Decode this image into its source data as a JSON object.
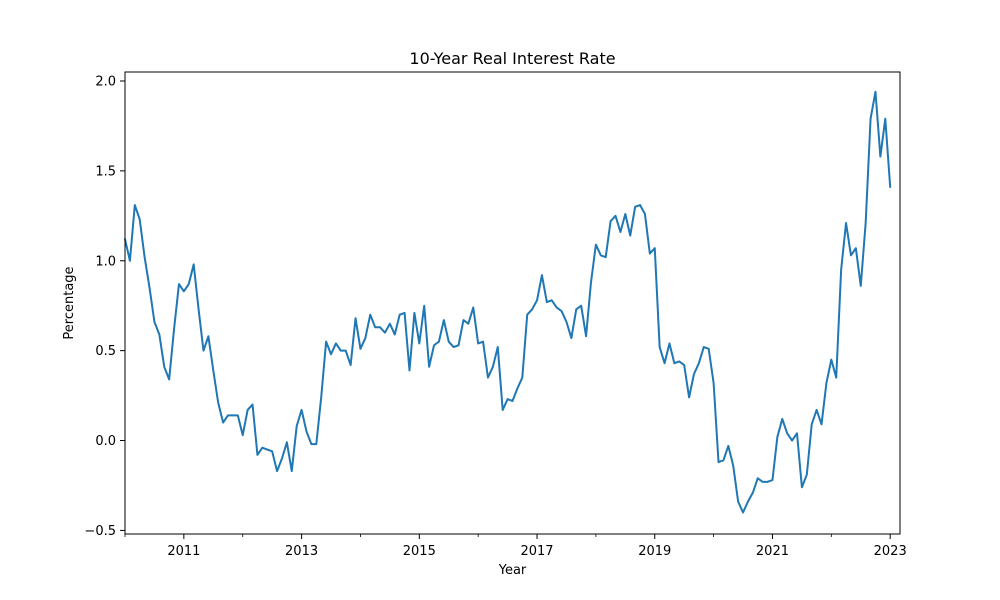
{
  "chart_data": {
    "type": "line",
    "title": "10-Year Real Interest Rate",
    "xlabel": "Year",
    "ylabel": "Percentage",
    "xlim": [
      "2010-01",
      "2023-03"
    ],
    "ylim": [
      -0.52,
      2.05
    ],
    "grid": false,
    "legend": "none",
    "x_ticks": [
      "2011",
      "2013",
      "2015",
      "2017",
      "2019",
      "2021",
      "2023"
    ],
    "y_ticks": [
      "−0.5",
      "0.0",
      "0.5",
      "1.0",
      "1.5",
      "2.0"
    ],
    "series": [
      {
        "color": "#1f77b4",
        "points": [
          [
            "2010-01",
            1.12
          ],
          [
            "2010-02",
            1.0
          ],
          [
            "2010-03",
            1.31
          ],
          [
            "2010-04",
            1.23
          ],
          [
            "2010-05",
            1.02
          ],
          [
            "2010-06",
            0.85
          ],
          [
            "2010-07",
            0.66
          ],
          [
            "2010-08",
            0.59
          ],
          [
            "2010-09",
            0.41
          ],
          [
            "2010-10",
            0.34
          ],
          [
            "2010-11",
            0.62
          ],
          [
            "2010-12",
            0.87
          ],
          [
            "2011-01",
            0.83
          ],
          [
            "2011-02",
            0.87
          ],
          [
            "2011-03",
            0.98
          ],
          [
            "2011-04",
            0.73
          ],
          [
            "2011-05",
            0.5
          ],
          [
            "2011-06",
            0.58
          ],
          [
            "2011-07",
            0.39
          ],
          [
            "2011-08",
            0.21
          ],
          [
            "2011-09",
            0.1
          ],
          [
            "2011-10",
            0.14
          ],
          [
            "2011-11",
            0.14
          ],
          [
            "2011-12",
            0.14
          ],
          [
            "2012-01",
            0.03
          ],
          [
            "2012-02",
            0.17
          ],
          [
            "2012-03",
            0.2
          ],
          [
            "2012-04",
            -0.08
          ],
          [
            "2012-05",
            -0.04
          ],
          [
            "2012-06",
            -0.05
          ],
          [
            "2012-07",
            -0.06
          ],
          [
            "2012-08",
            -0.17
          ],
          [
            "2012-09",
            -0.1
          ],
          [
            "2012-10",
            -0.01
          ],
          [
            "2012-11",
            -0.17
          ],
          [
            "2012-12",
            0.08
          ],
          [
            "2013-01",
            0.17
          ],
          [
            "2013-02",
            0.05
          ],
          [
            "2013-03",
            -0.02
          ],
          [
            "2013-04",
            -0.02
          ],
          [
            "2013-05",
            0.24
          ],
          [
            "2013-06",
            0.55
          ],
          [
            "2013-07",
            0.48
          ],
          [
            "2013-08",
            0.54
          ],
          [
            "2013-09",
            0.5
          ],
          [
            "2013-10",
            0.5
          ],
          [
            "2013-11",
            0.42
          ],
          [
            "2013-12",
            0.68
          ],
          [
            "2014-01",
            0.51
          ],
          [
            "2014-02",
            0.57
          ],
          [
            "2014-03",
            0.7
          ],
          [
            "2014-04",
            0.63
          ],
          [
            "2014-05",
            0.63
          ],
          [
            "2014-06",
            0.6
          ],
          [
            "2014-07",
            0.65
          ],
          [
            "2014-08",
            0.59
          ],
          [
            "2014-09",
            0.7
          ],
          [
            "2014-10",
            0.71
          ],
          [
            "2014-11",
            0.39
          ],
          [
            "2014-12",
            0.71
          ],
          [
            "2015-01",
            0.54
          ],
          [
            "2015-02",
            0.75
          ],
          [
            "2015-03",
            0.41
          ],
          [
            "2015-04",
            0.53
          ],
          [
            "2015-05",
            0.55
          ],
          [
            "2015-06",
            0.67
          ],
          [
            "2015-07",
            0.55
          ],
          [
            "2015-08",
            0.52
          ],
          [
            "2015-09",
            0.53
          ],
          [
            "2015-10",
            0.67
          ],
          [
            "2015-11",
            0.65
          ],
          [
            "2015-12",
            0.74
          ],
          [
            "2016-01",
            0.54
          ],
          [
            "2016-02",
            0.55
          ],
          [
            "2016-03",
            0.35
          ],
          [
            "2016-04",
            0.41
          ],
          [
            "2016-05",
            0.52
          ],
          [
            "2016-06",
            0.17
          ],
          [
            "2016-07",
            0.23
          ],
          [
            "2016-08",
            0.22
          ],
          [
            "2016-09",
            0.29
          ],
          [
            "2016-10",
            0.35
          ],
          [
            "2016-11",
            0.7
          ],
          [
            "2016-12",
            0.73
          ],
          [
            "2017-01",
            0.78
          ],
          [
            "2017-02",
            0.92
          ],
          [
            "2017-03",
            0.77
          ],
          [
            "2017-04",
            0.78
          ],
          [
            "2017-05",
            0.74
          ],
          [
            "2017-06",
            0.72
          ],
          [
            "2017-07",
            0.66
          ],
          [
            "2017-08",
            0.57
          ],
          [
            "2017-09",
            0.73
          ],
          [
            "2017-10",
            0.75
          ],
          [
            "2017-11",
            0.58
          ],
          [
            "2017-12",
            0.88
          ],
          [
            "2018-01",
            1.09
          ],
          [
            "2018-02",
            1.03
          ],
          [
            "2018-03",
            1.02
          ],
          [
            "2018-04",
            1.22
          ],
          [
            "2018-05",
            1.25
          ],
          [
            "2018-06",
            1.16
          ],
          [
            "2018-07",
            1.26
          ],
          [
            "2018-08",
            1.14
          ],
          [
            "2018-09",
            1.3
          ],
          [
            "2018-10",
            1.31
          ],
          [
            "2018-11",
            1.26
          ],
          [
            "2018-12",
            1.04
          ],
          [
            "2019-01",
            1.07
          ],
          [
            "2019-02",
            0.52
          ],
          [
            "2019-03",
            0.43
          ],
          [
            "2019-04",
            0.54
          ],
          [
            "2019-05",
            0.43
          ],
          [
            "2019-06",
            0.44
          ],
          [
            "2019-07",
            0.42
          ],
          [
            "2019-08",
            0.24
          ],
          [
            "2019-09",
            0.37
          ],
          [
            "2019-10",
            0.43
          ],
          [
            "2019-11",
            0.52
          ],
          [
            "2019-12",
            0.51
          ],
          [
            "2020-01",
            0.32
          ],
          [
            "2020-02",
            -0.12
          ],
          [
            "2020-03",
            -0.11
          ],
          [
            "2020-04",
            -0.03
          ],
          [
            "2020-05",
            -0.14
          ],
          [
            "2020-06",
            -0.34
          ],
          [
            "2020-07",
            -0.4
          ],
          [
            "2020-08",
            -0.34
          ],
          [
            "2020-09",
            -0.29
          ],
          [
            "2020-10",
            -0.21
          ],
          [
            "2020-11",
            -0.23
          ],
          [
            "2020-12",
            -0.23
          ],
          [
            "2021-01",
            -0.22
          ],
          [
            "2021-02",
            0.02
          ],
          [
            "2021-03",
            0.12
          ],
          [
            "2021-04",
            0.04
          ],
          [
            "2021-05",
            0.0
          ],
          [
            "2021-06",
            0.04
          ],
          [
            "2021-07",
            -0.26
          ],
          [
            "2021-08",
            -0.19
          ],
          [
            "2021-09",
            0.09
          ],
          [
            "2021-10",
            0.17
          ],
          [
            "2021-11",
            0.09
          ],
          [
            "2021-12",
            0.32
          ],
          [
            "2022-01",
            0.45
          ],
          [
            "2022-02",
            0.35
          ],
          [
            "2022-03",
            0.95
          ],
          [
            "2022-04",
            1.21
          ],
          [
            "2022-05",
            1.03
          ],
          [
            "2022-06",
            1.07
          ],
          [
            "2022-07",
            0.86
          ],
          [
            "2022-08",
            1.21
          ],
          [
            "2022-09",
            1.79
          ],
          [
            "2022-10",
            1.94
          ],
          [
            "2022-11",
            1.58
          ],
          [
            "2022-12",
            1.79
          ],
          [
            "2023-01",
            1.41
          ]
        ]
      }
    ]
  }
}
